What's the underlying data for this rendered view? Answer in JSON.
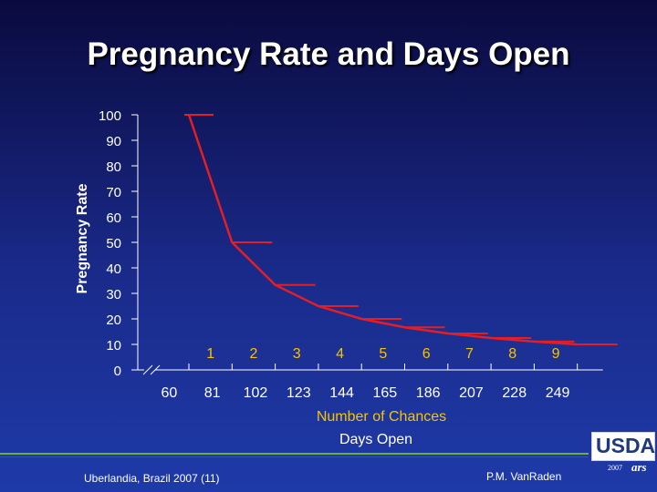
{
  "title": "Pregnancy Rate and Days Open",
  "footer": {
    "left": "Uberlandia, Brazil 2007 (11)",
    "right": "P.M. VanRaden"
  },
  "logo": {
    "text": "USDA",
    "year": "2007",
    "mark": "ars"
  },
  "colors": {
    "line": "#e31e24",
    "axis": "#ffffff",
    "chances_label": "#f5c400"
  },
  "chart_data": {
    "type": "line",
    "title": "Pregnancy Rate and Days Open",
    "ylabel": "Pregnancy Rate",
    "ylim": [
      0,
      100
    ],
    "yticks": [
      "0",
      "10",
      "20",
      "30",
      "40",
      "50",
      "60",
      "70",
      "80",
      "90",
      "100"
    ],
    "x": [
      60,
      81,
      102,
      123,
      144,
      165,
      186,
      207,
      228,
      249
    ],
    "xtick_labels": [
      "60",
      "81",
      "102",
      "123",
      "144",
      "165",
      "186",
      "207",
      "228",
      "249"
    ],
    "xlabel": "Days Open",
    "chances": [
      "1",
      "2",
      "3",
      "4",
      "5",
      "6",
      "7",
      "8",
      "9"
    ],
    "chances_label": "Number of Chances",
    "series": [
      {
        "name": "Pregnancy Rate",
        "values": [
          100,
          50,
          33.3,
          25,
          20,
          16.7,
          14.3,
          12.5,
          11.1,
          10
        ]
      }
    ],
    "grid": false,
    "axis_break": true
  }
}
